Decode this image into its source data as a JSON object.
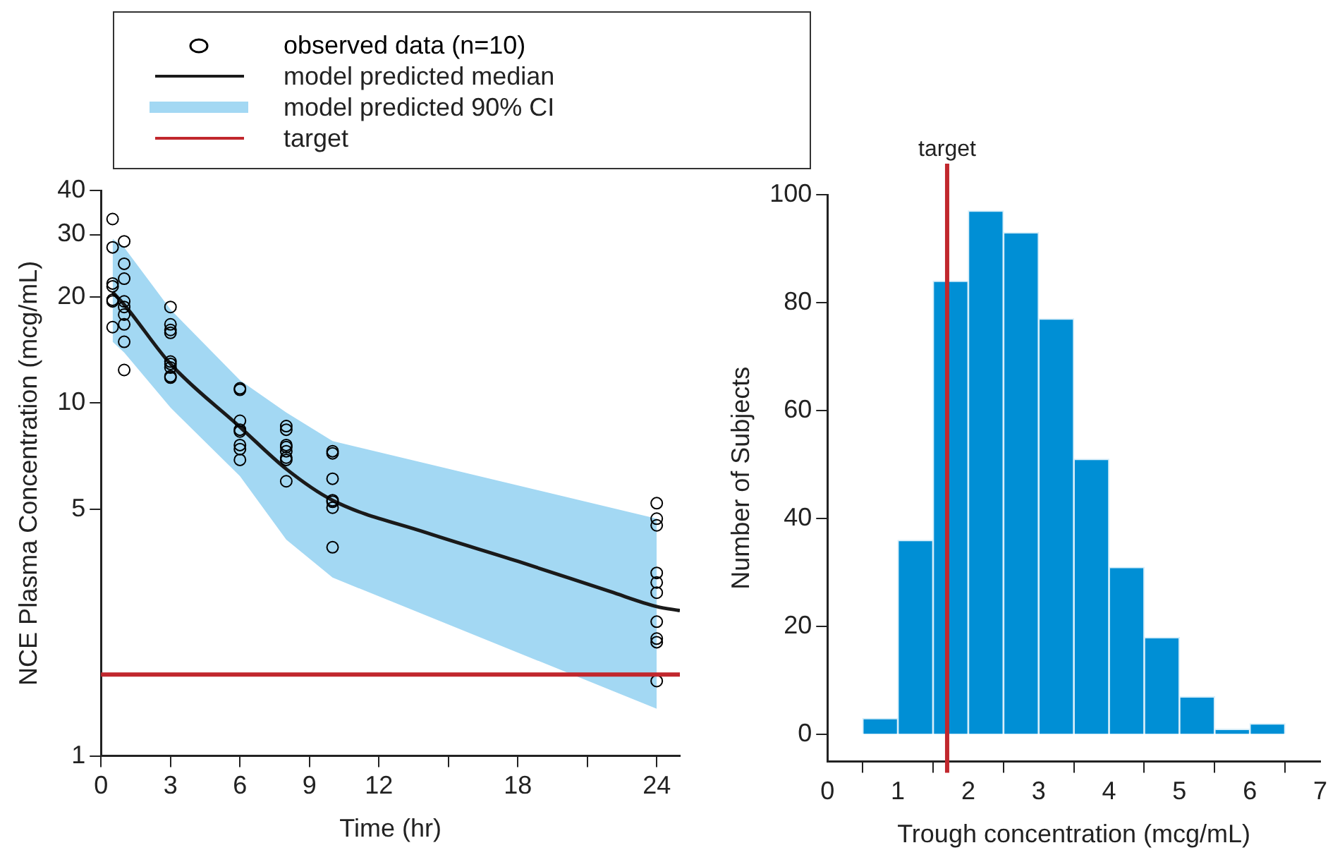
{
  "chart_data": [
    {
      "type": "line",
      "xlabel": "Time (hr)",
      "ylabel": "NCE Plasma Concentration (mcg/mL)",
      "log": "y",
      "xlim": [
        0,
        25
      ],
      "xticks": [
        0,
        3,
        6,
        9,
        12,
        {
          "value": 15,
          "label": null
        },
        18,
        {
          "value": 21,
          "label": null
        },
        24
      ],
      "ylim": [
        1,
        40
      ],
      "yticks": [
        1,
        5,
        10,
        20,
        30,
        40
      ],
      "legend": "top left",
      "series": [
        {
          "name": "observed data (n=10)",
          "type": "scatter",
          "marker": "circle",
          "color": "#000000",
          "x": [
            0.5,
            0.5,
            0.5,
            0.5,
            0.5,
            0.5,
            0.5,
            1,
            1,
            1,
            1,
            1,
            1,
            1,
            1,
            1,
            3,
            3,
            3,
            3,
            3,
            3,
            3,
            3,
            3,
            6,
            6,
            6,
            6,
            6,
            6,
            6,
            6,
            8,
            8,
            8,
            8,
            8,
            8,
            8,
            8,
            10,
            10,
            10,
            10,
            10,
            10,
            10,
            24,
            24,
            24,
            24,
            24,
            24,
            24,
            24,
            24,
            24
          ],
          "values": [
            33.2,
            27.6,
            21.8,
            21.4,
            19.6,
            19.4,
            16.4,
            28.7,
            24.8,
            22.5,
            19.4,
            18.7,
            17.8,
            16.7,
            14.9,
            12.4,
            18.7,
            16.7,
            16.1,
            15.8,
            13.1,
            12.9,
            12.6,
            11.9,
            11.8,
            11.0,
            10.9,
            8.9,
            8.4,
            8.3,
            7.6,
            7.4,
            6.9,
            8.6,
            8.4,
            7.6,
            7.5,
            7.3,
            7.0,
            6.9,
            6.0,
            7.3,
            7.2,
            6.1,
            5.3,
            5.25,
            5.05,
            3.9,
            5.2,
            4.7,
            4.5,
            3.3,
            3.1,
            2.9,
            2.4,
            2.15,
            2.1,
            1.63
          ]
        },
        {
          "name": "model predicted median",
          "type": "line",
          "color": "#1a1a1a",
          "x": [
            0.5,
            1,
            3,
            6,
            8,
            10,
            14,
            18,
            22,
            24,
            25
          ],
          "values": [
            20.6,
            19.0,
            12.9,
            8.55,
            6.5,
            5.3,
            4.3,
            3.56,
            2.92,
            2.65,
            2.58
          ]
        },
        {
          "name": "model predicted 90% CI",
          "type": "line",
          "color": "#a3d8f3",
          "x": [
            0.5,
            1,
            3,
            6,
            8,
            10,
            24
          ],
          "values": [
            null,
            null,
            null,
            null,
            null,
            null,
            null
          ],
          "lower": [
            14.9,
            13.9,
            9.7,
            6.2,
            4.1,
            3.2,
            1.36
          ],
          "upper": [
            29.2,
            27.6,
            18.4,
            11.6,
            9.4,
            7.8,
            4.7
          ]
        }
      ],
      "ref_lines": [
        {
          "axis": "y",
          "value": 1.7,
          "label": "target",
          "color": "#c1272d"
        }
      ]
    },
    {
      "type": "histogram",
      "xlabel": "Trough concentration (mcg/mL)",
      "ylabel": "Number of Subjects",
      "bins": [
        0.5,
        1,
        1.5,
        2,
        2.5,
        3,
        3.5,
        4,
        4.5,
        5,
        5.5,
        6,
        6.5
      ],
      "values": [
        3,
        36,
        84,
        97,
        93,
        77,
        51,
        31,
        18,
        7,
        1,
        2
      ],
      "color": "#008fd5",
      "xlim": [
        0,
        7
      ],
      "xticks": [
        0,
        1,
        2,
        3,
        4,
        5,
        6,
        7
      ],
      "ylim": [
        -5,
        100
      ],
      "yticks": [
        0,
        20,
        40,
        60,
        80,
        100
      ],
      "ref_lines": [
        {
          "axis": "x",
          "value": 1.7,
          "label": "target",
          "color": "#c1272d"
        }
      ]
    }
  ]
}
